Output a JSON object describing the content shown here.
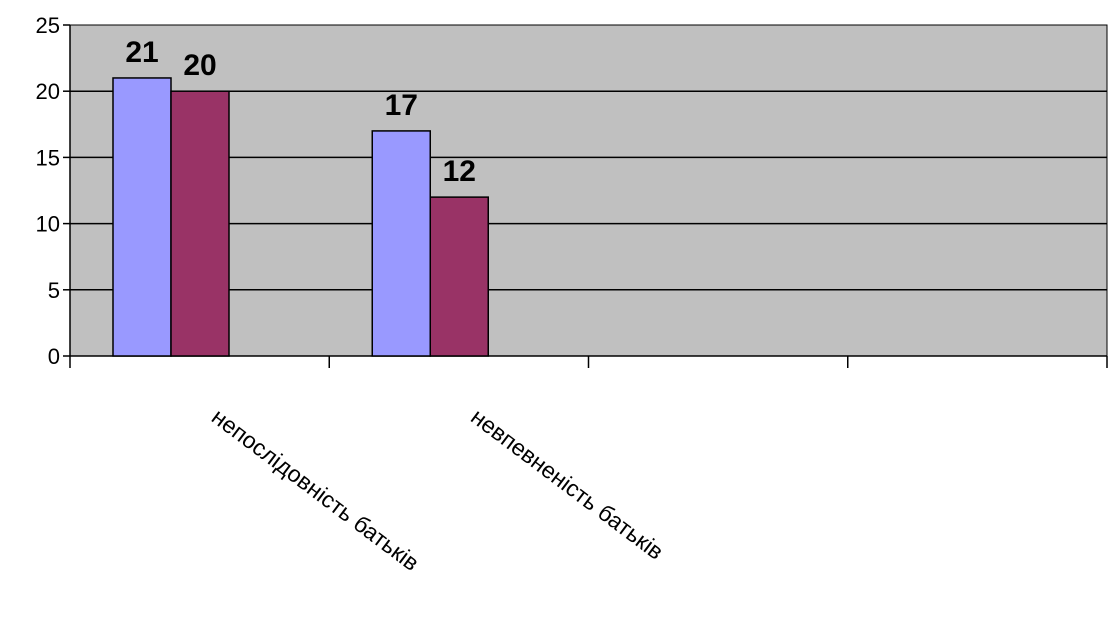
{
  "chart_data": {
    "type": "bar",
    "categories": [
      "непослідовність батьків",
      "невпевненість батьків",
      "",
      ""
    ],
    "series": [
      {
        "values": [
          21,
          17,
          null,
          null
        ],
        "color": "#9999FF"
      },
      {
        "values": [
          20,
          12,
          null,
          null
        ],
        "color": "#993366"
      }
    ],
    "data_labels": [
      [
        "21",
        "17"
      ],
      [
        "20",
        "12"
      ]
    ],
    "yticks": [
      "0",
      "5",
      "10",
      "15",
      "20",
      "25"
    ],
    "ylim": [
      0,
      25
    ],
    "grid": true,
    "plot_background": "#C0C0C0",
    "legend": "none"
  }
}
